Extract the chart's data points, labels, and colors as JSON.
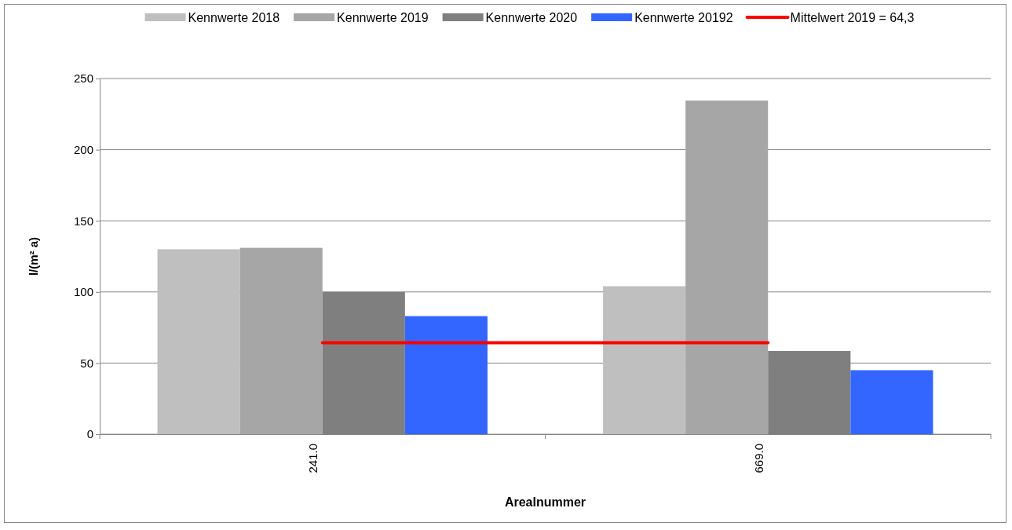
{
  "chart_data": {
    "type": "bar",
    "xlabel": "Arealnummer",
    "ylabel": "l/(m² a)",
    "categories": [
      "241.0",
      "669.0"
    ],
    "series": [
      {
        "name": "Kennwerte 2018",
        "color": "#bfbfbf",
        "values": [
          130,
          104
        ]
      },
      {
        "name": "Kennwerte 2019",
        "color": "#a6a6a6",
        "values": [
          131,
          234.5
        ]
      },
      {
        "name": "Kennwerte 2020",
        "color": "#7f7f7f",
        "values": [
          100,
          58.5
        ]
      },
      {
        "name": "Kennwerte 20192",
        "color": "#3366ff",
        "values": [
          83,
          45
        ]
      },
      {
        "name": "Mittelwert 2019 = 64,3",
        "type": "line",
        "color": "#ff0000",
        "values": [
          64.3,
          64.3
        ],
        "marker": "none"
      }
    ],
    "ylim": [
      0,
      250
    ],
    "yticks": [
      0,
      50,
      100,
      150,
      200,
      250
    ],
    "grid": "y",
    "legend": "top"
  }
}
